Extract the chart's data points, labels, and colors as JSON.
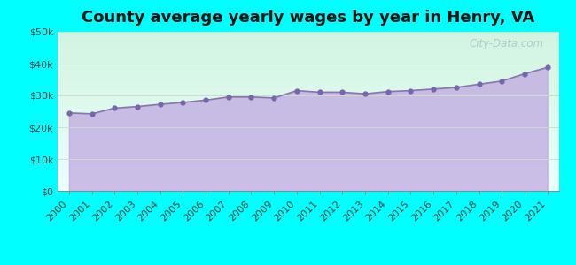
{
  "title": "County average yearly wages by year in Henry, VA",
  "years": [
    2000,
    2001,
    2002,
    2003,
    2004,
    2005,
    2006,
    2007,
    2008,
    2009,
    2010,
    2011,
    2012,
    2013,
    2014,
    2015,
    2016,
    2017,
    2018,
    2019,
    2020,
    2021
  ],
  "wages": [
    24500,
    24200,
    26000,
    26500,
    27200,
    27800,
    28500,
    29500,
    29500,
    29200,
    31500,
    31000,
    31000,
    30500,
    31200,
    31500,
    32000,
    32500,
    33500,
    34500,
    36800,
    38800
  ],
  "ylim": [
    0,
    50000
  ],
  "yticks": [
    0,
    10000,
    20000,
    30000,
    40000,
    50000
  ],
  "ytick_labels": [
    "$0",
    "$10k",
    "$20k",
    "$30k",
    "$40k",
    "$50k"
  ],
  "fill_color_top": "#c9b8e8",
  "fill_color_bottom": "#d8c8f0",
  "line_color": "#8877aa",
  "line_width": 1.2,
  "marker": "o",
  "marker_size": 3.5,
  "marker_color": "#7766aa",
  "bg_color": "#00ffff",
  "plot_bg_top": "#d4f0e0",
  "plot_bg_bottom": "#eafaff",
  "watermark": "City-Data.com",
  "title_fontsize": 13,
  "tick_fontsize": 8
}
